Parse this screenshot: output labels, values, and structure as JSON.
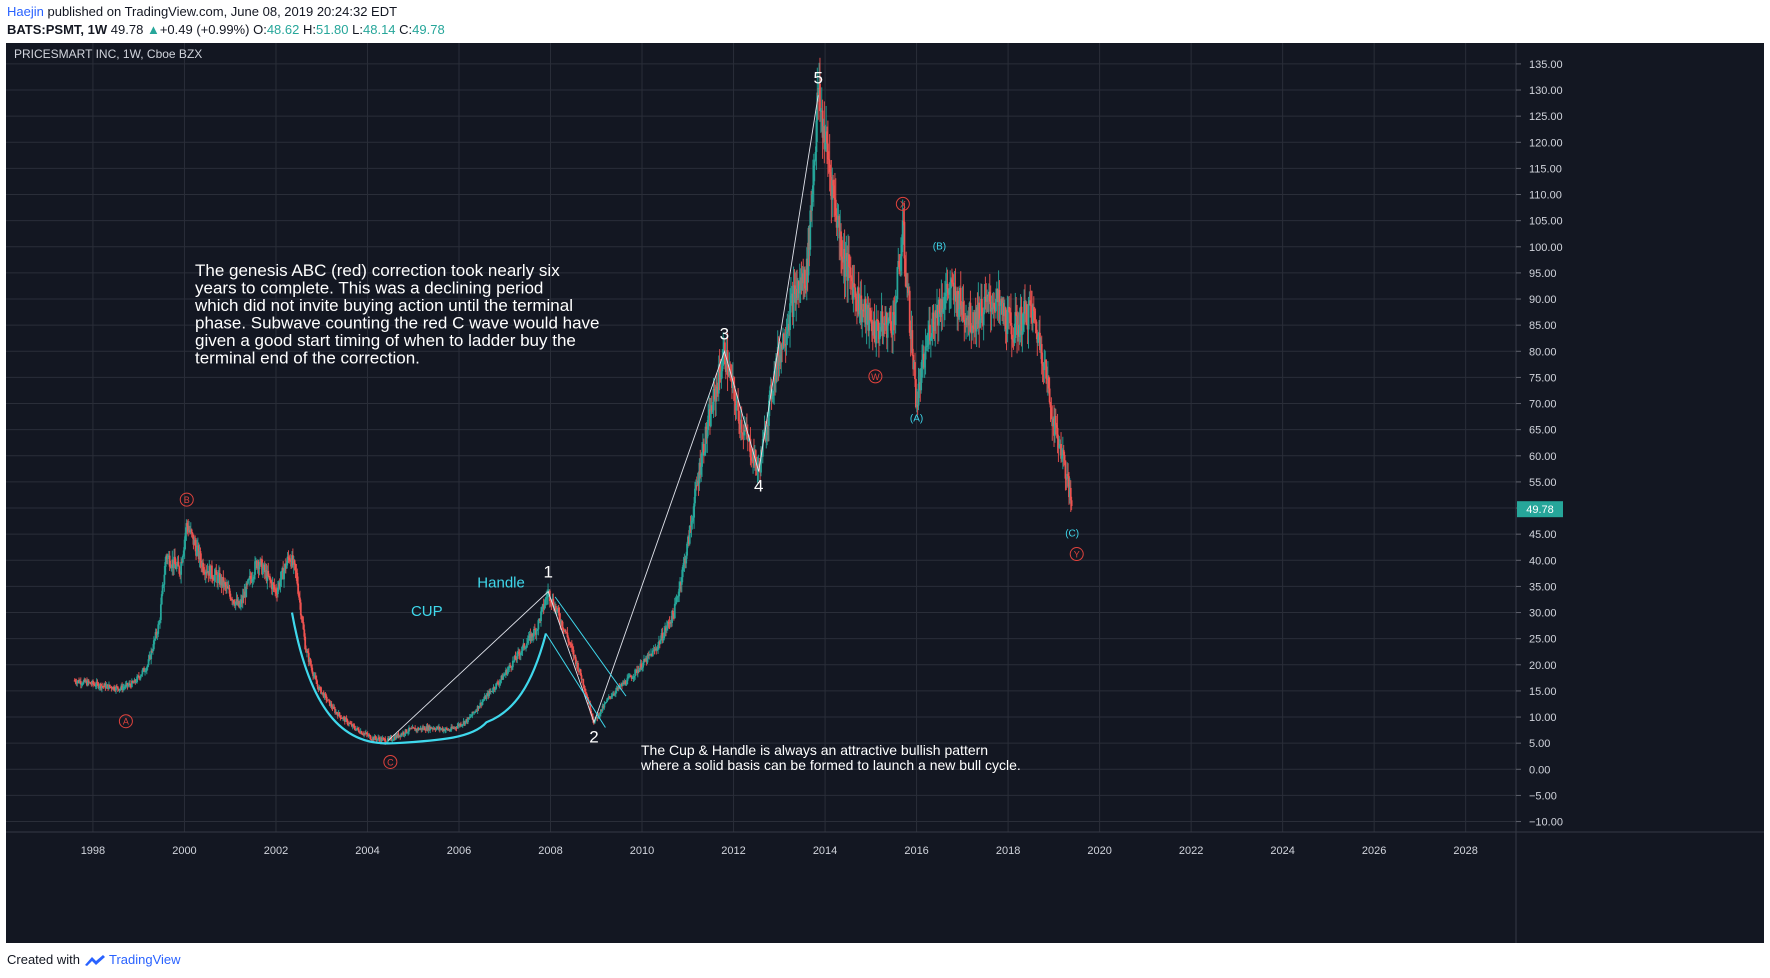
{
  "header": {
    "author": "Haejin",
    "published": "published on TradingView.com, June 08, 2019 20:24:32 EDT",
    "symbol": "BATS:PSMT, 1W",
    "last": "49.78",
    "change": "+0.49 (+0.99%)",
    "o_label": "O:",
    "o": "48.62",
    "h_label": "H:",
    "h": "51.80",
    "l_label": "L:",
    "l": "48.14",
    "c_label": "C:",
    "c": "49.78"
  },
  "footer": {
    "created_with": "Created with",
    "brand": "TradingView"
  },
  "colors": {
    "background": "#131722",
    "grid": "#2a2e39",
    "up": "#26a69a",
    "down": "#ef5350",
    "candle_body": "#8c8f96",
    "wave_red": "#e0433d",
    "wave_cyan": "#3fd8ec",
    "text": "#ffffff",
    "axis_text": "#d1d4dc"
  },
  "chart_data": {
    "type": "candlestick",
    "title": "PRICESMART INC, 1W, Cboe BZX",
    "x_ticks": [
      "1998",
      "2000",
      "2002",
      "2004",
      "2006",
      "2008",
      "2010",
      "2012",
      "2014",
      "2016",
      "2018",
      "2020",
      "2022",
      "2024",
      "2026",
      "2028"
    ],
    "y_ticks": [
      "135.00",
      "130.00",
      "125.00",
      "120.00",
      "115.00",
      "110.00",
      "105.00",
      "100.00",
      "95.00",
      "90.00",
      "85.00",
      "80.00",
      "75.00",
      "70.00",
      "65.00",
      "60.00",
      "55.00",
      "50.00",
      "45.00",
      "40.00",
      "35.00",
      "30.00",
      "25.00",
      "20.00",
      "15.00",
      "10.00",
      "5.00",
      "0.00",
      "−5.00",
      "−10.00"
    ],
    "xlim": [
      1996.1,
      2029.1
    ],
    "ylim": [
      -12,
      139
    ],
    "last_price_label": "49.78",
    "price_path": [
      [
        1997.6,
        17
      ],
      [
        1998.2,
        16
      ],
      [
        1998.6,
        15.5
      ],
      [
        1998.9,
        16.5
      ],
      [
        1999.2,
        20
      ],
      [
        1999.45,
        28
      ],
      [
        1999.6,
        41
      ],
      [
        1999.9,
        38
      ],
      [
        2000.05,
        47
      ],
      [
        2000.4,
        39
      ],
      [
        2000.8,
        36
      ],
      [
        2001.2,
        31
      ],
      [
        2001.6,
        40
      ],
      [
        2002.0,
        34
      ],
      [
        2002.3,
        41
      ],
      [
        2002.45,
        37
      ],
      [
        2002.65,
        23
      ],
      [
        2002.9,
        16
      ],
      [
        2003.3,
        11
      ],
      [
        2003.7,
        8
      ],
      [
        2004.1,
        6
      ],
      [
        2004.45,
        5.5
      ],
      [
        2004.9,
        7.5
      ],
      [
        2005.4,
        8
      ],
      [
        2005.8,
        7.5
      ],
      [
        2006.2,
        9.5
      ],
      [
        2006.6,
        14
      ],
      [
        2006.9,
        17
      ],
      [
        2007.3,
        22
      ],
      [
        2007.7,
        27
      ],
      [
        2007.95,
        34
      ],
      [
        2008.3,
        27
      ],
      [
        2008.7,
        17
      ],
      [
        2008.95,
        9
      ],
      [
        2009.3,
        14
      ],
      [
        2009.8,
        18
      ],
      [
        2010.3,
        23
      ],
      [
        2010.7,
        30
      ],
      [
        2011.0,
        43
      ],
      [
        2011.3,
        60
      ],
      [
        2011.8,
        80
      ],
      [
        2012.1,
        68
      ],
      [
        2012.55,
        57
      ],
      [
        2012.9,
        76
      ],
      [
        2013.3,
        90
      ],
      [
        2013.6,
        95
      ],
      [
        2013.85,
        129
      ],
      [
        2014.1,
        115
      ],
      [
        2014.4,
        98
      ],
      [
        2014.8,
        88
      ],
      [
        2015.1,
        84
      ],
      [
        2015.5,
        86
      ],
      [
        2015.7,
        103
      ],
      [
        2016.0,
        70
      ],
      [
        2016.3,
        85
      ],
      [
        2016.7,
        92
      ],
      [
        2017.2,
        86
      ],
      [
        2017.7,
        90
      ],
      [
        2018.1,
        84
      ],
      [
        2018.5,
        88
      ],
      [
        2018.75,
        80
      ],
      [
        2019.0,
        66
      ],
      [
        2019.2,
        60
      ],
      [
        2019.4,
        49.78
      ]
    ],
    "waves_white": [
      {
        "label": "1",
        "x": 2007.95,
        "y": 34
      },
      {
        "label": "2",
        "x": 2008.95,
        "y": 9
      },
      {
        "label": "3",
        "x": 2011.8,
        "y": 80
      },
      {
        "label": "4",
        "x": 2012.55,
        "y": 57
      },
      {
        "label": "5",
        "x": 2013.85,
        "y": 129
      }
    ],
    "waves_red": [
      {
        "label": "A",
        "x": 1998.72,
        "y": 9.2
      },
      {
        "label": "B",
        "x": 2000.05,
        "y": 51.6
      },
      {
        "label": "C",
        "x": 2004.5,
        "y": 1.4
      },
      {
        "label": "W",
        "x": 2015.1,
        "y": 75.2
      },
      {
        "label": "X",
        "x": 2015.7,
        "y": 108.2
      },
      {
        "label": "Y",
        "x": 2019.5,
        "y": 41.2
      }
    ],
    "waves_cyan": [
      {
        "label": "(A)",
        "x": 2016.0,
        "y": 67.3
      },
      {
        "label": "(B)",
        "x": 2016.5,
        "y": 100.2
      },
      {
        "label": "(C)",
        "x": 2019.4,
        "y": 45.3
      }
    ],
    "annotations": {
      "cup": "CUP",
      "handle": "Handle",
      "note_top": [
        "The genesis ABC (red) correction took nearly six",
        "years to complete. This was a  declining period",
        "which did not invite buying action until the terminal",
        "phase. Subwave counting the red C wave would have",
        "given a good start timing of when to ladder buy the",
        "terminal end of the correction."
      ],
      "note_bottom": [
        "The Cup & Handle is always an attractive bullish pattern",
        "where a solid basis can be formed to launch a new bull cycle."
      ]
    }
  }
}
